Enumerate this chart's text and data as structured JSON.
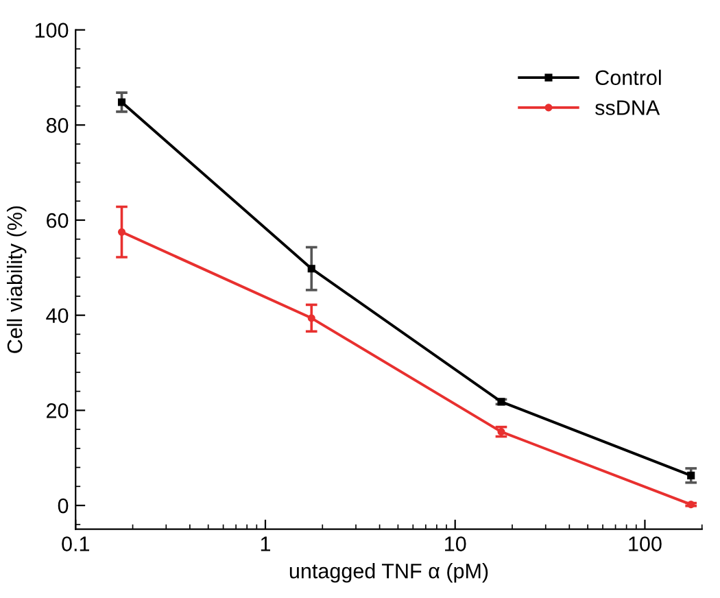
{
  "chart_data": {
    "type": "line",
    "xlabel": "untagged TNF α (pM)",
    "ylabel": "Cell viability (%)",
    "log": "x",
    "xlim": [
      0.1,
      200
    ],
    "xticks": [
      0.1,
      1,
      10,
      100
    ],
    "ylim": [
      -5,
      100
    ],
    "yticks": [
      0,
      20,
      40,
      60,
      80,
      100
    ],
    "x": [
      0.175,
      1.75,
      17.5,
      175
    ],
    "legend": "top right",
    "grid": false,
    "series": [
      {
        "name": "Control",
        "color": "#000000",
        "marker": "square",
        "values": [
          84.8,
          49.8,
          21.8,
          6.3
        ],
        "errors": [
          2,
          4.5,
          0.5,
          1.5
        ]
      },
      {
        "name": "ssDNA",
        "color": "#e8302f",
        "marker": "circle",
        "values": [
          57.5,
          39.4,
          15.5,
          0.2
        ],
        "errors": [
          5.3,
          2.8,
          1,
          0.3
        ]
      }
    ]
  }
}
